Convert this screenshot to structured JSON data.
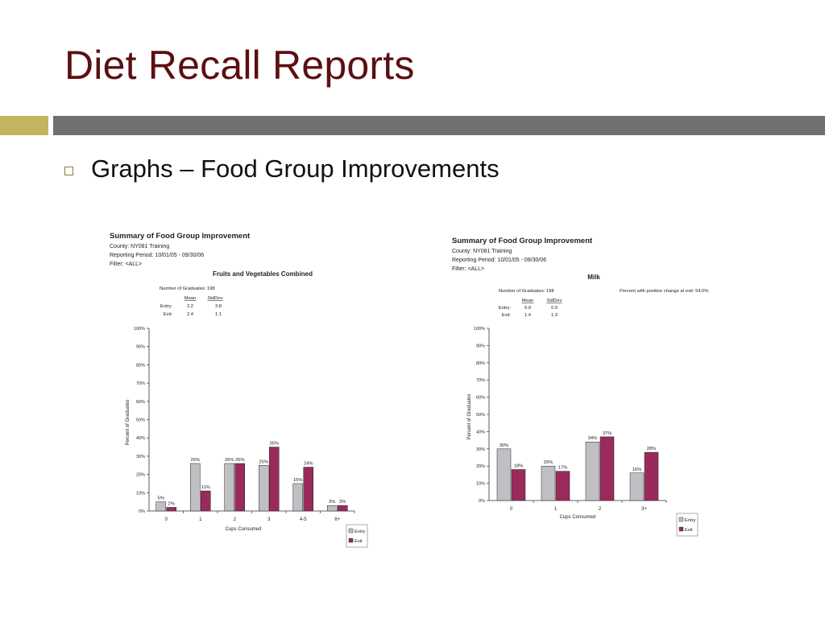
{
  "slide": {
    "title": "Diet Recall Reports",
    "bullet": "Graphs – Food Group Improvements",
    "colors": {
      "title": "#5c0f12",
      "accent_bar": "#c4b45e",
      "divider": "#707070"
    }
  },
  "chart_data": [
    {
      "type": "bar",
      "header": "Summary of Food Group Improvement",
      "county": "County: NY081  Training",
      "period": "Reporting Period: 10/01/05 - 09/30/06",
      "filter": "Filter: <ALL>",
      "title": "Fruits and Vegetables Combined",
      "graduates": "Number of Graduates: 198",
      "percent_note": "",
      "stats": {
        "mean_label": "Mean",
        "sd_label": "StdDev",
        "entry_label": "Entry:",
        "entry_mean": "2.2",
        "entry_sd": "3.8",
        "exit_label": "Exit:",
        "exit_mean": "2.4",
        "exit_sd": "1.1"
      },
      "xlabel": "Cups Consumed",
      "ylabel": "Percent of Graduates",
      "ylim": [
        0,
        100
      ],
      "yticks": [
        "0%",
        "10%",
        "20%",
        "30%",
        "40%",
        "50%",
        "60%",
        "70%",
        "80%",
        "90%",
        "100%"
      ],
      "categories": [
        "0",
        "1",
        "2",
        "3",
        "4-5",
        "6+"
      ],
      "series": [
        {
          "name": "Entry",
          "color": "#c0c0c4",
          "values": [
            5,
            26,
            26,
            25,
            15,
            3
          ],
          "labels": [
            "5%",
            "26%",
            "26%",
            "25%",
            "15%",
            "3%"
          ]
        },
        {
          "name": "Exit",
          "color": "#9b2a5c",
          "values": [
            2,
            11,
            26,
            35,
            24,
            3
          ],
          "labels": [
            "2%",
            "11%",
            "26%",
            "35%",
            "24%",
            "3%"
          ]
        }
      ],
      "legend_position": "bottom-right"
    },
    {
      "type": "bar",
      "header": "Summary of Food Group Improvement",
      "county": "County: NY081  Training",
      "period": "Reporting Period: 10/01/05 - 09/30/06",
      "filter": "Filter: <ALL>",
      "title": "Milk",
      "graduates": "Number of Graduates: 198",
      "percent_note": "Percent with positive change at exit: 54.0%",
      "stats": {
        "mean_label": "Mean",
        "sd_label": "StdDev",
        "entry_label": "Entry:",
        "entry_mean": "0.9",
        "entry_sd": "0.9",
        "exit_label": "Exit:",
        "exit_mean": "1.4",
        "exit_sd": "1.3"
      },
      "xlabel": "Cups Consumed",
      "ylabel": "Percent of Graduates",
      "ylim": [
        0,
        100
      ],
      "yticks": [
        "0%",
        "10%",
        "20%",
        "30%",
        "40%",
        "50%",
        "60%",
        "70%",
        "80%",
        "90%",
        "100%"
      ],
      "categories": [
        "0",
        "1",
        "2",
        "3+"
      ],
      "series": [
        {
          "name": "Entry",
          "color": "#c0c0c4",
          "values": [
            30,
            20,
            34,
            16
          ],
          "labels": [
            "30%",
            "20%",
            "34%",
            "16%"
          ]
        },
        {
          "name": "Exit",
          "color": "#9b2a5c",
          "values": [
            18,
            17,
            37,
            28
          ],
          "labels": [
            "18%",
            "17%",
            "37%",
            "28%"
          ]
        }
      ],
      "legend_position": "bottom-right"
    }
  ]
}
